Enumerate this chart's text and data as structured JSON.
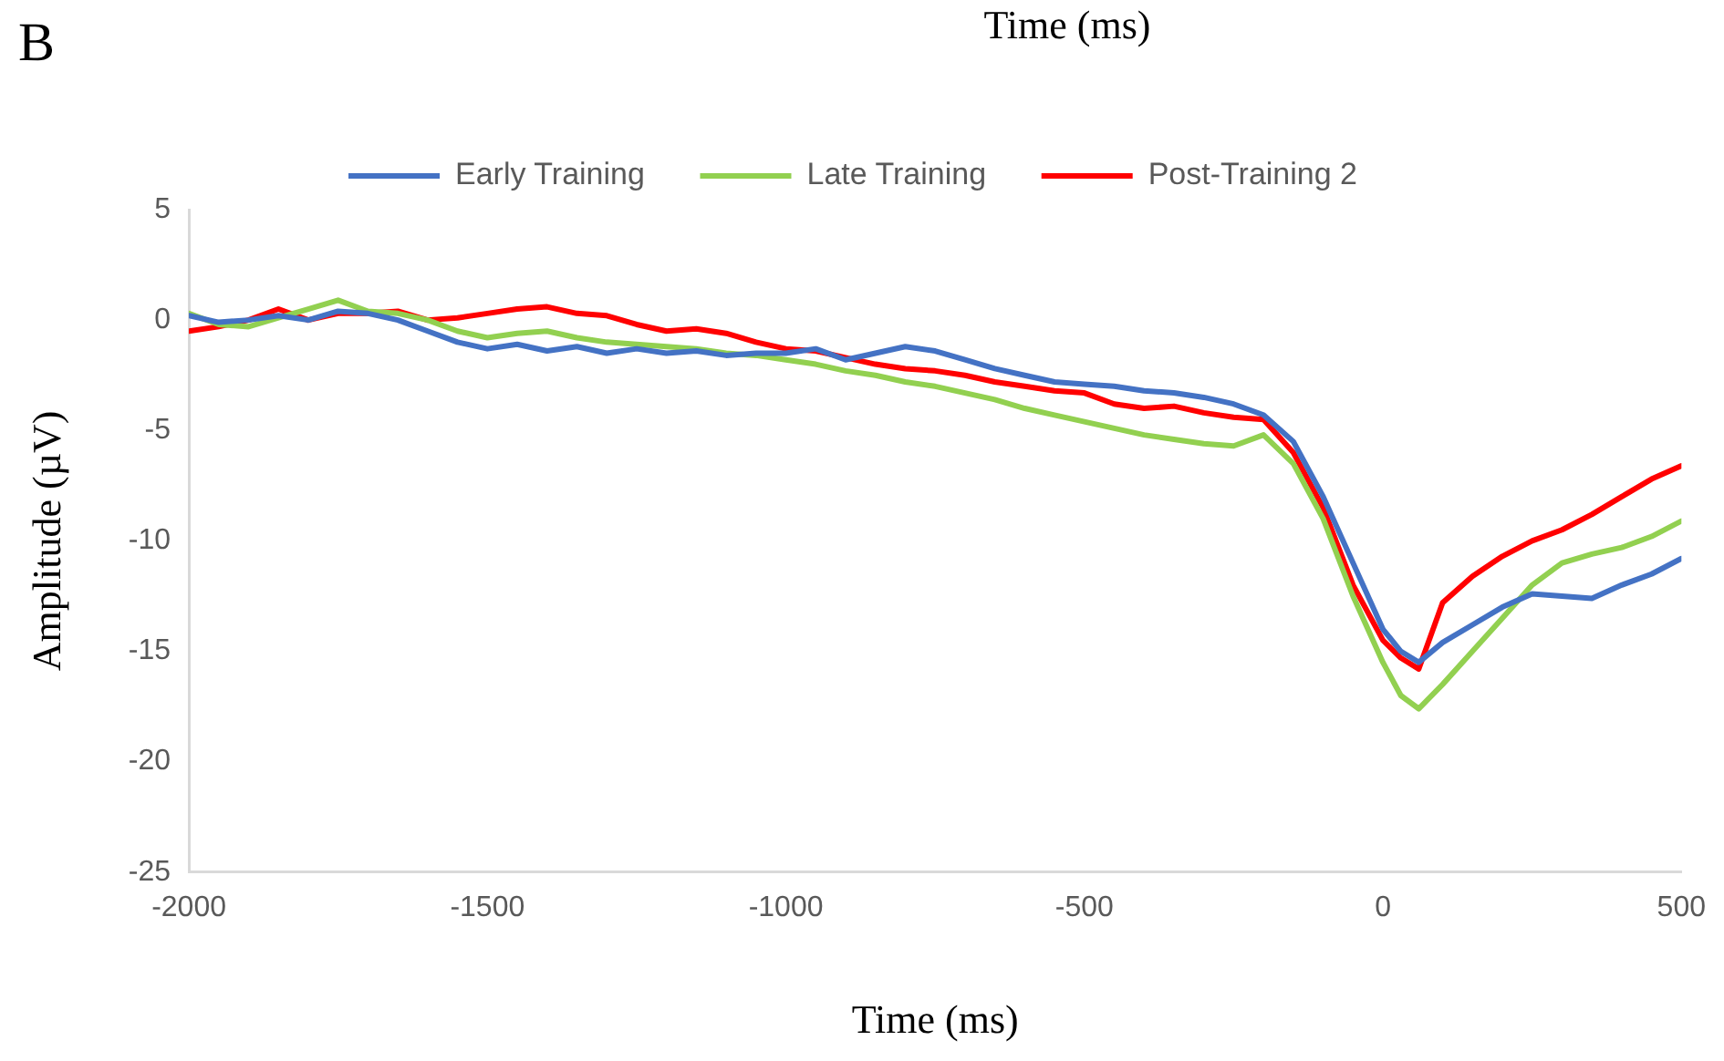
{
  "chart_data": {
    "type": "line",
    "xlabel": "Time (ms)",
    "ylabel": "Amplitude (µV)",
    "annotations": [
      "B",
      "Time (ms)"
    ],
    "xlim": [
      -2000,
      500
    ],
    "xticks": [
      -2000,
      -1500,
      -1000,
      -500,
      0,
      500
    ],
    "ylim": [
      -25,
      5
    ],
    "yticks": [
      5,
      0,
      -5,
      -10,
      -15,
      -20,
      -25
    ],
    "grid": false,
    "legend": "top",
    "marker": "none",
    "line_style": "solid",
    "series": [
      {
        "name": "Early Training",
        "color": "#4472c4",
        "x": [
          -2000,
          -1950,
          -1900,
          -1850,
          -1800,
          -1750,
          -1700,
          -1650,
          -1600,
          -1550,
          -1500,
          -1450,
          -1400,
          -1350,
          -1300,
          -1250,
          -1200,
          -1150,
          -1100,
          -1050,
          -1000,
          -950,
          -900,
          -850,
          -800,
          -750,
          -700,
          -650,
          -600,
          -550,
          -500,
          -450,
          -400,
          -350,
          -300,
          -250,
          -200,
          -150,
          -100,
          -50,
          0,
          30,
          60,
          100,
          150,
          200,
          250,
          300,
          350,
          400,
          450,
          500
        ],
        "values": [
          0.2,
          -0.1,
          0,
          0.2,
          0,
          0.4,
          0.3,
          0,
          -0.5,
          -1.0,
          -1.3,
          -1.1,
          -1.4,
          -1.2,
          -1.5,
          -1.3,
          -1.5,
          -1.4,
          -1.6,
          -1.5,
          -1.5,
          -1.3,
          -1.8,
          -1.5,
          -1.2,
          -1.4,
          -1.8,
          -2.2,
          -2.5,
          -2.8,
          -2.9,
          -3.0,
          -3.2,
          -3.3,
          -3.5,
          -3.8,
          -4.3,
          -5.5,
          -8.0,
          -11.0,
          -14.0,
          -15.0,
          -15.5,
          -14.6,
          -13.8,
          -13.0,
          -12.4,
          -12.5,
          -12.6,
          -12.0,
          -11.5,
          -10.8
        ]
      },
      {
        "name": "Late Training",
        "color": "#92d050",
        "x": [
          -2000,
          -1950,
          -1900,
          -1850,
          -1800,
          -1750,
          -1700,
          -1650,
          -1600,
          -1550,
          -1500,
          -1450,
          -1400,
          -1350,
          -1300,
          -1250,
          -1200,
          -1150,
          -1100,
          -1050,
          -1000,
          -950,
          -900,
          -850,
          -800,
          -750,
          -700,
          -650,
          -600,
          -550,
          -500,
          -450,
          -400,
          -350,
          -300,
          -250,
          -200,
          -150,
          -100,
          -50,
          0,
          30,
          60,
          100,
          150,
          200,
          250,
          300,
          350,
          400,
          450,
          500
        ],
        "values": [
          0.3,
          -0.2,
          -0.3,
          0.1,
          0.5,
          0.9,
          0.4,
          0.3,
          0,
          -0.5,
          -0.8,
          -0.6,
          -0.5,
          -0.8,
          -1.0,
          -1.1,
          -1.2,
          -1.3,
          -1.5,
          -1.6,
          -1.8,
          -2.0,
          -2.3,
          -2.5,
          -2.8,
          -3.0,
          -3.3,
          -3.6,
          -4.0,
          -4.3,
          -4.6,
          -4.9,
          -5.2,
          -5.4,
          -5.6,
          -5.7,
          -5.2,
          -6.5,
          -9.0,
          -12.5,
          -15.5,
          -17.0,
          -17.6,
          -16.5,
          -15.0,
          -13.5,
          -12.0,
          -11.0,
          -10.6,
          -10.3,
          -9.8,
          -9.1
        ]
      },
      {
        "name": "Post-Training 2",
        "color": "#ff0000",
        "x": [
          -2000,
          -1950,
          -1900,
          -1850,
          -1800,
          -1750,
          -1700,
          -1650,
          -1600,
          -1550,
          -1500,
          -1450,
          -1400,
          -1350,
          -1300,
          -1250,
          -1200,
          -1150,
          -1100,
          -1050,
          -1000,
          -950,
          -900,
          -850,
          -800,
          -750,
          -700,
          -650,
          -600,
          -550,
          -500,
          -450,
          -400,
          -350,
          -300,
          -250,
          -200,
          -150,
          -100,
          -50,
          0,
          30,
          60,
          100,
          150,
          200,
          250,
          300,
          350,
          400,
          450,
          500
        ],
        "values": [
          -0.5,
          -0.3,
          0,
          0.5,
          0,
          0.3,
          0.3,
          0.4,
          0,
          0.1,
          0.3,
          0.5,
          0.6,
          0.3,
          0.2,
          -0.2,
          -0.5,
          -0.4,
          -0.6,
          -1.0,
          -1.3,
          -1.4,
          -1.7,
          -2.0,
          -2.2,
          -2.3,
          -2.5,
          -2.8,
          -3.0,
          -3.2,
          -3.3,
          -3.8,
          -4.0,
          -3.9,
          -4.2,
          -4.4,
          -4.5,
          -6.0,
          -8.5,
          -12.0,
          -14.5,
          -15.3,
          -15.8,
          -12.8,
          -11.6,
          -10.7,
          -10.0,
          -9.5,
          -8.8,
          -8.0,
          -7.2,
          -6.6
        ]
      }
    ]
  }
}
